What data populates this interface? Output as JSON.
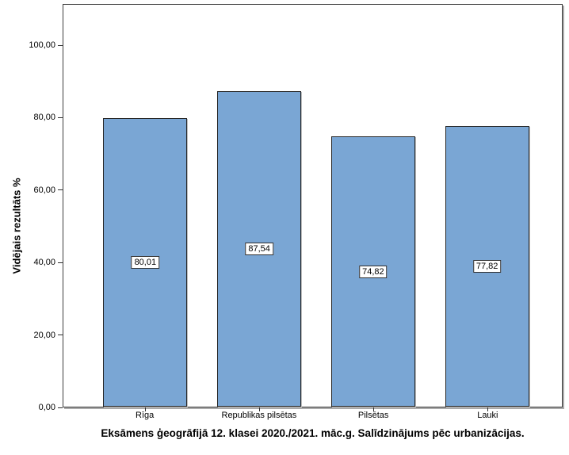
{
  "chart_data": {
    "type": "bar",
    "title": "Eksāmens ģeogrāfijā 12. klasei 2020./2021. māc.g. Salīdzinājums pēc urbanizācijas.",
    "xlabel": "",
    "ylabel": "Vidējais rezultāts %",
    "categories": [
      "Rīga",
      "Republikas pilsētas",
      "Pilsētas",
      "Lauki"
    ],
    "values": [
      80.01,
      87.54,
      74.82,
      77.82
    ],
    "value_labels": [
      "80,01",
      "87,54",
      "74,82",
      "77,82"
    ],
    "yticks": [
      0,
      20,
      40,
      60,
      80,
      100
    ],
    "ytick_labels": [
      "0,00",
      "20,00",
      "40,00",
      "60,00",
      "80,00",
      "100,00"
    ],
    "ylim": [
      0,
      111.38
    ],
    "grid": false,
    "legend": false,
    "bar_color": "#7AA6D4",
    "bar_border_color": "#262626",
    "frame_color": "#3d3d3d",
    "text_color": "#000000",
    "background_color": "#ffffff"
  }
}
